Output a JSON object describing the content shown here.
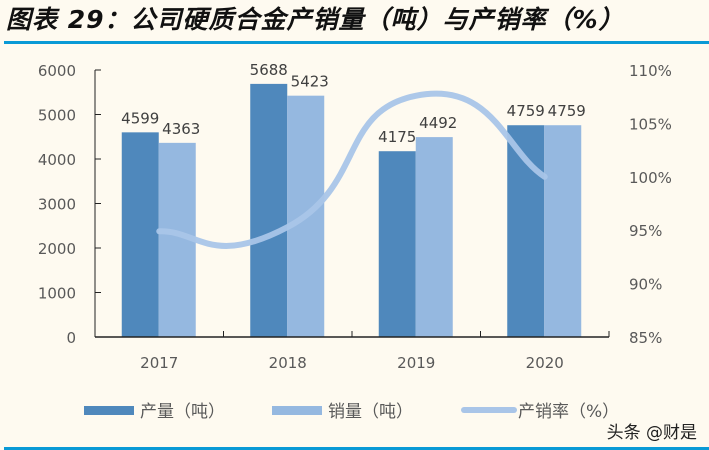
{
  "title": "图表 29：公司硬质合金产销量（吨）与产销率（%）",
  "watermark": "头条 @财是",
  "colors": {
    "production": "#4f88bc",
    "sales": "#95b8e0",
    "rate_line": "#a9c5e8",
    "axis_text": "#595959",
    "rule": "#0a9ad6",
    "background": "#fefaf0"
  },
  "legend": [
    {
      "label": "产量（吨）",
      "type": "bar",
      "color": "#4f88bc"
    },
    {
      "label": "销量（吨）",
      "type": "bar",
      "color": "#95b8e0"
    },
    {
      "label": "产销率（%）",
      "type": "line",
      "color": "#a9c5e8"
    }
  ],
  "chart_data": {
    "type": "bar",
    "title": "图表 29：公司硬质合金产销量（吨）与产销率（%）",
    "categories": [
      "2017",
      "2018",
      "2019",
      "2020"
    ],
    "series": [
      {
        "name": "产量（吨）",
        "type": "bar",
        "axis": "left",
        "values": [
          4599,
          5688,
          4175,
          4759
        ],
        "labels": [
          "4599",
          "5688",
          "4175",
          "4759"
        ]
      },
      {
        "name": "销量（吨）",
        "type": "bar",
        "axis": "left",
        "values": [
          4363,
          5423,
          4492,
          4759
        ],
        "labels": [
          "4363",
          "5423",
          "4492",
          "4759"
        ]
      },
      {
        "name": "产销率（%）",
        "type": "line",
        "axis": "right",
        "smooth": true,
        "values": [
          94.9,
          95.3,
          107.6,
          100.0
        ]
      }
    ],
    "left_axis": {
      "min": 0,
      "max": 6000,
      "ticks": [
        "0",
        "1000",
        "2000",
        "3000",
        "4000",
        "5000",
        "6000"
      ]
    },
    "right_axis": {
      "min": 85,
      "max": 110,
      "ticks": [
        "85%",
        "90%",
        "95%",
        "100%",
        "105%",
        "110%"
      ]
    },
    "xlabel": "",
    "ylabel": "",
    "grid": false,
    "legend_position": "bottom"
  }
}
